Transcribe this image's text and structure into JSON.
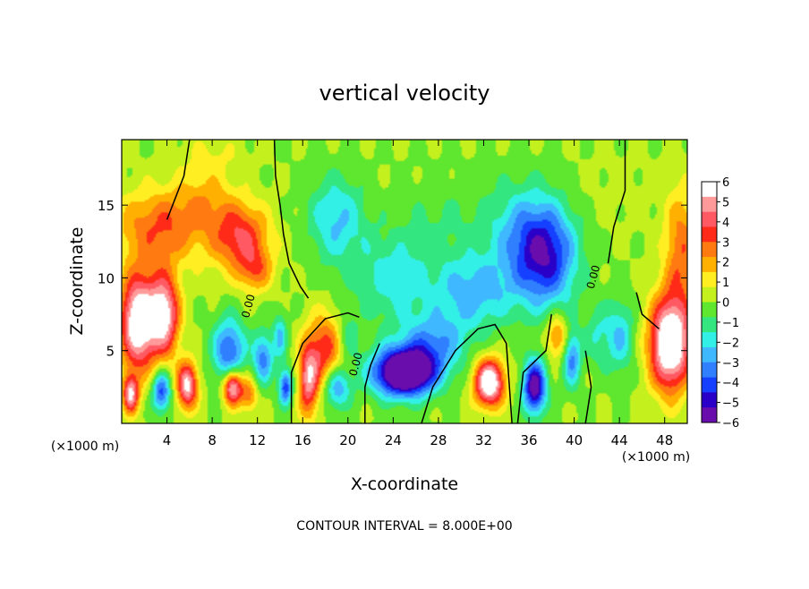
{
  "chart_data": {
    "type": "heatmap",
    "title": "vertical velocity",
    "xlabel": "X-coordinate",
    "ylabel": "Z-coordinate",
    "x_unit_left": "(×1000 m)",
    "x_unit_right": "(×1000 m)",
    "footer": "CONTOUR INTERVAL = 8.000E+00",
    "xlim": [
      0,
      50
    ],
    "ylim": [
      0,
      19.5
    ],
    "xticks": [
      4,
      8,
      12,
      16,
      20,
      24,
      28,
      32,
      36,
      40,
      44,
      48
    ],
    "xtick_labels": [
      "4",
      "8",
      "12",
      "16",
      "20",
      "24",
      "28",
      "32",
      "36",
      "40",
      "44",
      "48"
    ],
    "yticks": [
      5,
      10,
      15
    ],
    "ytick_labels": [
      "5",
      "10",
      "15"
    ],
    "contour_labels": [
      {
        "text": "0.00",
        "x": 11.5,
        "y": 8.0
      },
      {
        "text": "0.00",
        "x": 21.0,
        "y": 4.0
      },
      {
        "text": "0.00",
        "x": 42.0,
        "y": 10.0
      }
    ],
    "colorbar": {
      "min": -6,
      "max": 6,
      "tick_labels": [
        "6",
        "5",
        "4",
        "3",
        "2",
        "1",
        "0",
        "−1",
        "−2",
        "−3",
        "−4",
        "−5",
        "−6"
      ],
      "colors": [
        "#6a0dad",
        "#2a00c8",
        "#1540ff",
        "#2f7fff",
        "#3fb8ff",
        "#33f0e6",
        "#33e680",
        "#5fe62e",
        "#c4f01e",
        "#ffee22",
        "#ffb000",
        "#ff7a10",
        "#ff2a18",
        "#ff5a64",
        "#ff9a9a",
        "#ffffff"
      ],
      "blobs": [
        {
          "x": 1.5,
          "y": 7.0,
          "sx": 1.6,
          "sy": 3.2,
          "a": 7.5
        },
        {
          "x": 3.8,
          "y": 7.5,
          "sx": 1.3,
          "sy": 2.8,
          "a": 6.0
        },
        {
          "x": 0.8,
          "y": 2.0,
          "sx": 0.7,
          "sy": 1.3,
          "a": 5.5
        },
        {
          "x": 3.5,
          "y": 2.2,
          "sx": 0.8,
          "sy": 1.4,
          "a": -4.5
        },
        {
          "x": 5.8,
          "y": 2.6,
          "sx": 0.9,
          "sy": 1.6,
          "a": 6.0
        },
        {
          "x": 3.5,
          "y": 13.5,
          "sx": 4.0,
          "sy": 2.6,
          "a": 3.2
        },
        {
          "x": 10.5,
          "y": 12.8,
          "sx": 2.5,
          "sy": 2.3,
          "a": 4.0
        },
        {
          "x": 7.5,
          "y": 15.5,
          "sx": 2.5,
          "sy": 2.0,
          "a": 1.5
        },
        {
          "x": 11.8,
          "y": 10.5,
          "sx": 1.5,
          "sy": 1.5,
          "a": 2.5
        },
        {
          "x": 9.5,
          "y": 5.0,
          "sx": 1.4,
          "sy": 2.2,
          "a": -4.2
        },
        {
          "x": 9.8,
          "y": 2.5,
          "sx": 0.8,
          "sy": 1.2,
          "a": 6.5
        },
        {
          "x": 11.2,
          "y": 2.0,
          "sx": 0.8,
          "sy": 1.2,
          "a": 3.0
        },
        {
          "x": 12.5,
          "y": 4.5,
          "sx": 0.9,
          "sy": 1.8,
          "a": -3.5
        },
        {
          "x": 14.0,
          "y": 6.0,
          "sx": 0.6,
          "sy": 1.6,
          "a": -2.5
        },
        {
          "x": 14.5,
          "y": 2.5,
          "sx": 0.6,
          "sy": 1.2,
          "a": -4.5
        },
        {
          "x": 16.5,
          "y": 3.0,
          "sx": 0.9,
          "sy": 2.5,
          "a": 5.0
        },
        {
          "x": 18.0,
          "y": 5.0,
          "sx": 1.5,
          "sy": 2.5,
          "a": 3.8
        },
        {
          "x": 19.0,
          "y": 2.5,
          "sx": 1.2,
          "sy": 1.5,
          "a": -3.5
        },
        {
          "x": 20.0,
          "y": 6.0,
          "sx": 1.0,
          "sy": 1.5,
          "a": -1.5
        },
        {
          "x": 25.0,
          "y": 3.5,
          "sx": 2.7,
          "sy": 1.6,
          "a": -9.0
        },
        {
          "x": 27.5,
          "y": 5.5,
          "sx": 3.0,
          "sy": 2.0,
          "a": -3.0
        },
        {
          "x": 32.5,
          "y": 2.8,
          "sx": 1.3,
          "sy": 1.6,
          "a": 7.5
        },
        {
          "x": 36.5,
          "y": 2.5,
          "sx": 1.0,
          "sy": 1.8,
          "a": -6.5
        },
        {
          "x": 38.5,
          "y": 6.0,
          "sx": 1.0,
          "sy": 1.5,
          "a": 3.0
        },
        {
          "x": 39.8,
          "y": 4.5,
          "sx": 0.8,
          "sy": 2.0,
          "a": -3.5
        },
        {
          "x": 42.0,
          "y": 6.0,
          "sx": 1.0,
          "sy": 2.0,
          "a": -1.5
        },
        {
          "x": 44.0,
          "y": 6.0,
          "sx": 1.3,
          "sy": 2.5,
          "a": -2.5
        },
        {
          "x": 48.5,
          "y": 5.5,
          "sx": 1.8,
          "sy": 3.2,
          "a": 8.0
        },
        {
          "x": 49.5,
          "y": 12.0,
          "sx": 1.5,
          "sy": 4.0,
          "a": 3.0
        },
        {
          "x": 19.0,
          "y": 14.0,
          "sx": 2.5,
          "sy": 3.0,
          "a": -2.5
        },
        {
          "x": 24.0,
          "y": 10.0,
          "sx": 3.5,
          "sy": 3.0,
          "a": -2.0
        },
        {
          "x": 31.0,
          "y": 9.0,
          "sx": 3.5,
          "sy": 2.5,
          "a": -2.8
        },
        {
          "x": 37.5,
          "y": 11.5,
          "sx": 2.7,
          "sy": 3.5,
          "a": -5.0
        },
        {
          "x": 35.0,
          "y": 13.0,
          "sx": 3.0,
          "sy": 3.5,
          "a": -2.0
        },
        {
          "x": 28.5,
          "y": 14.0,
          "sx": 4.0,
          "sy": 3.0,
          "a": -0.8
        },
        {
          "x": 44.0,
          "y": 16.0,
          "sx": 4.0,
          "sy": 3.0,
          "a": 0.3
        },
        {
          "x": 8.0,
          "y": 18.5,
          "sx": 3.0,
          "sy": 1.5,
          "a": 0.8
        }
      ],
      "contours": [
        [
          [
            6.0,
            19.5
          ],
          [
            5.5,
            17.0
          ],
          [
            4.0,
            14.0
          ]
        ],
        [
          [
            13.5,
            19.5
          ],
          [
            13.6,
            17.0
          ],
          [
            14.0,
            15.0
          ],
          [
            14.3,
            13.0
          ],
          [
            14.8,
            11.0
          ],
          [
            15.8,
            9.4
          ],
          [
            16.5,
            8.6
          ]
        ],
        [
          [
            15.0,
            0.0
          ],
          [
            15.0,
            3.5
          ],
          [
            16.0,
            5.5
          ],
          [
            18.0,
            7.2
          ],
          [
            20.0,
            7.6
          ],
          [
            21.0,
            7.3
          ]
        ],
        [
          [
            21.5,
            0.0
          ],
          [
            21.5,
            2.5
          ],
          [
            22.0,
            4.0
          ],
          [
            22.8,
            5.5
          ]
        ],
        [
          [
            26.5,
            0.0
          ],
          [
            27.5,
            2.5
          ],
          [
            29.5,
            5.0
          ],
          [
            31.5,
            6.5
          ],
          [
            33.0,
            6.8
          ],
          [
            34.0,
            5.5
          ],
          [
            34.5,
            0.0
          ]
        ],
        [
          [
            35.0,
            0.0
          ],
          [
            35.5,
            3.5
          ],
          [
            37.5,
            5.0
          ],
          [
            38.0,
            7.5
          ]
        ],
        [
          [
            41.0,
            0.0
          ],
          [
            41.5,
            2.5
          ],
          [
            41.0,
            5.0
          ]
        ],
        [
          [
            44.5,
            19.5
          ],
          [
            44.5,
            16.0
          ],
          [
            43.5,
            13.5
          ],
          [
            43.0,
            11.0
          ]
        ],
        [
          [
            45.5,
            9.0
          ],
          [
            46.0,
            7.5
          ],
          [
            47.5,
            6.5
          ]
        ]
      ]
    }
  }
}
